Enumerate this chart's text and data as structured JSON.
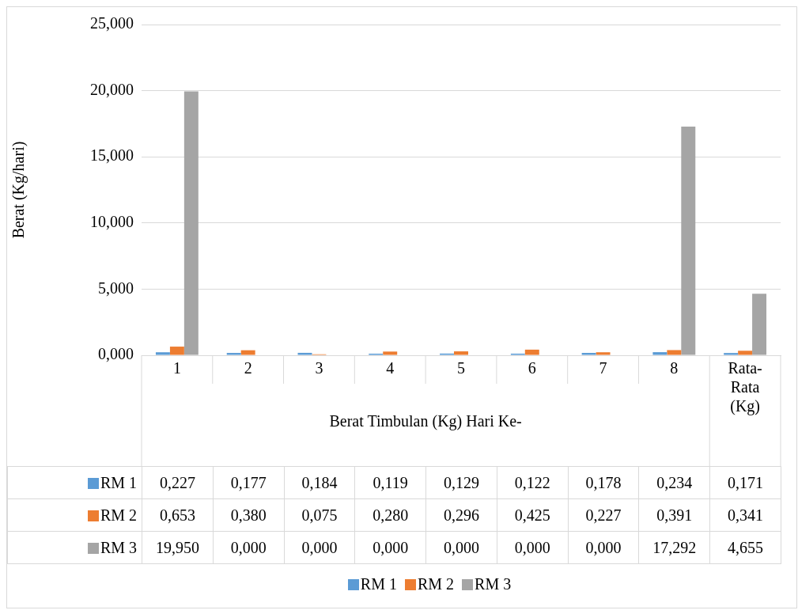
{
  "chart_data": {
    "type": "bar",
    "xlabel": "Berat Timbulan (Kg) Hari Ke-",
    "ylabel": "Berat (Kg/hari)",
    "categories": [
      "1",
      "2",
      "3",
      "4",
      "5",
      "6",
      "7",
      "8",
      "Rata-Rata (Kg)"
    ],
    "series": [
      {
        "name": "RM 1",
        "color": "#5b9bd5",
        "values": [
          0.227,
          0.177,
          0.184,
          0.119,
          0.129,
          0.122,
          0.178,
          0.234,
          0.171
        ],
        "value_labels": [
          "0,227",
          "0,177",
          "0,184",
          "0,119",
          "0,129",
          "0,122",
          "0,178",
          "0,234",
          "0,171"
        ]
      },
      {
        "name": "RM 2",
        "color": "#ed7d31",
        "values": [
          0.653,
          0.38,
          0.075,
          0.28,
          0.296,
          0.425,
          0.227,
          0.391,
          0.341
        ],
        "value_labels": [
          "0,653",
          "0,380",
          "0,075",
          "0,280",
          "0,296",
          "0,425",
          "0,227",
          "0,391",
          "0,341"
        ]
      },
      {
        "name": "RM 3",
        "color": "#a5a5a5",
        "values": [
          19.95,
          0,
          0,
          0,
          0,
          0,
          0,
          17.292,
          4.655
        ],
        "value_labels": [
          "19,950",
          "0,000",
          "0,000",
          "0,000",
          "0,000",
          "0,000",
          "0,000",
          "17,292",
          "4,655"
        ]
      }
    ],
    "ylim": [
      0,
      25
    ],
    "yticks": [
      {
        "value": 0,
        "label": "0,000"
      },
      {
        "value": 5,
        "label": "5,000"
      },
      {
        "value": 10,
        "label": "10,000"
      },
      {
        "value": 15,
        "label": "15,000"
      },
      {
        "value": 20,
        "label": "20,000"
      },
      {
        "value": 25,
        "label": "25,000"
      }
    ],
    "grid": "y",
    "legend": "bottom"
  }
}
